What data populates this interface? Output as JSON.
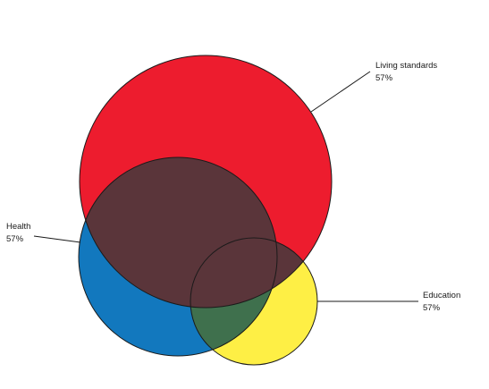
{
  "diagram": {
    "type": "venn",
    "sets": [
      {
        "key": "living",
        "name": "Living standards",
        "value": "57%",
        "color": "#ED1C2E"
      },
      {
        "key": "health",
        "name": "Health",
        "value": "57%",
        "color": "#1278BE"
      },
      {
        "key": "education",
        "name": "Education",
        "value": "57%",
        "color": "#FEEF45"
      }
    ],
    "overlaps": [
      {
        "sets": [
          "living",
          "health"
        ],
        "color": "#5A353A"
      },
      {
        "sets": [
          "health",
          "education"
        ],
        "color": "#3F704D"
      },
      {
        "sets": [
          "living",
          "education"
        ],
        "color": "#5A353A"
      },
      {
        "sets": [
          "living",
          "health",
          "education"
        ],
        "color": "#5A353A"
      }
    ]
  }
}
